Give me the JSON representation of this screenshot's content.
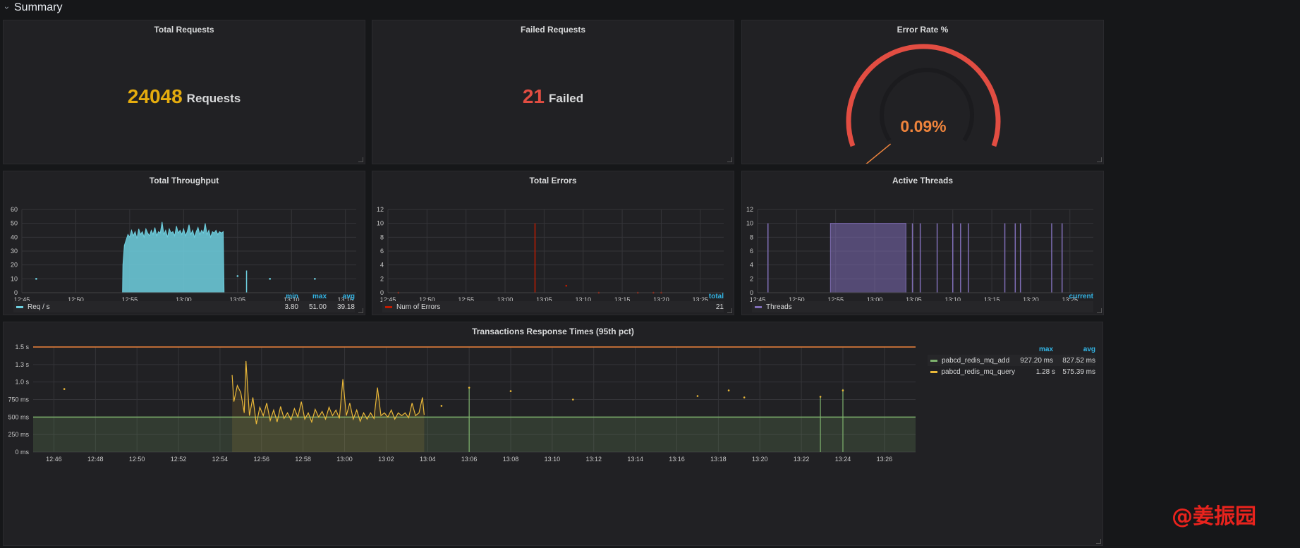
{
  "row": {
    "title": "Summary"
  },
  "total_requests": {
    "title": "Total Requests",
    "value": "24048",
    "unit": "Requests",
    "color": "#e5ac0e"
  },
  "failed_requests": {
    "title": "Failed Requests",
    "value": "21",
    "unit": "Failed",
    "color": "#e24d42"
  },
  "error_rate": {
    "title": "Error Rate %",
    "value": "0.09%",
    "fraction": 0.0009,
    "color": "#ef843c"
  },
  "throughput": {
    "title": "Total Throughput",
    "legend": {
      "headers": [
        "min",
        "max",
        "avg"
      ],
      "series_label": "Req / s",
      "min": "3.80",
      "max": "51.00",
      "avg": "39.18"
    },
    "color": "#6ed0e0"
  },
  "total_errors": {
    "title": "Total Errors",
    "legend": {
      "header": "total",
      "series_label": "Num of Errors",
      "total": "21"
    },
    "color": "#bf1b00"
  },
  "active_threads": {
    "title": "Active Threads",
    "legend": {
      "header": "current",
      "series_label": "Threads",
      "current": ""
    },
    "color": "#806eb7"
  },
  "response_times": {
    "title": "Transactions Response Times (95th pct)",
    "legend": {
      "headers": [
        "max",
        "avg"
      ],
      "rows": [
        {
          "label": "pabcd_redis_mq_add",
          "max": "927.20 ms",
          "avg": "827.52 ms",
          "color": "#7eb26d"
        },
        {
          "label": "pabcd_redis_mq_query",
          "max": "1.28 s",
          "avg": "575.39 ms",
          "color": "#eab839"
        }
      ]
    }
  },
  "watermark": "@姜振园",
  "chart_data": [
    {
      "type": "area",
      "title": "Total Throughput",
      "series_name": "Req / s",
      "x_ticks": [
        "12:45",
        "12:50",
        "12:55",
        "13:00",
        "13:05",
        "13:10",
        "13:15"
      ],
      "y_ticks": [
        0,
        10,
        20,
        30,
        40,
        50,
        60
      ],
      "xlim": [
        "12:45",
        "13:16"
      ],
      "ylim": [
        0,
        60
      ],
      "points": [
        [
          "12:54:20",
          0
        ],
        [
          "12:54:22",
          20
        ],
        [
          "12:54:30",
          34
        ],
        [
          "12:54:40",
          38
        ],
        [
          "12:54:50",
          42
        ],
        [
          "12:55:00",
          40
        ],
        [
          "12:55:10",
          45
        ],
        [
          "12:55:20",
          41
        ],
        [
          "12:55:30",
          44
        ],
        [
          "12:55:40",
          39
        ],
        [
          "12:55:50",
          46
        ],
        [
          "12:56:00",
          42
        ],
        [
          "12:56:10",
          44
        ],
        [
          "12:56:20",
          40
        ],
        [
          "12:56:30",
          46
        ],
        [
          "12:56:40",
          43
        ],
        [
          "12:56:50",
          41
        ],
        [
          "12:57:00",
          45
        ],
        [
          "12:57:10",
          42
        ],
        [
          "12:57:20",
          47
        ],
        [
          "12:57:30",
          41
        ],
        [
          "12:57:40",
          44
        ],
        [
          "12:57:50",
          43
        ],
        [
          "12:58:00",
          51
        ],
        [
          "12:58:10",
          42
        ],
        [
          "12:58:20",
          45
        ],
        [
          "12:58:30",
          40
        ],
        [
          "12:58:40",
          46
        ],
        [
          "12:58:50",
          43
        ],
        [
          "12:59:00",
          44
        ],
        [
          "12:59:10",
          41
        ],
        [
          "12:59:20",
          48
        ],
        [
          "12:59:30",
          43
        ],
        [
          "12:59:40",
          45
        ],
        [
          "12:59:50",
          42
        ],
        [
          "13:00:00",
          46
        ],
        [
          "13:00:10",
          41
        ],
        [
          "13:00:20",
          44
        ],
        [
          "13:00:30",
          49
        ],
        [
          "13:00:40",
          42
        ],
        [
          "13:00:50",
          45
        ],
        [
          "13:01:00",
          40
        ],
        [
          "13:01:10",
          44
        ],
        [
          "13:01:20",
          47
        ],
        [
          "13:01:30",
          42
        ],
        [
          "13:01:40",
          45
        ],
        [
          "13:01:50",
          43
        ],
        [
          "13:02:00",
          50
        ],
        [
          "13:02:10",
          42
        ],
        [
          "13:02:20",
          45
        ],
        [
          "13:02:30",
          40
        ],
        [
          "13:02:40",
          44
        ],
        [
          "13:02:50",
          43
        ],
        [
          "13:03:00",
          45
        ],
        [
          "13:03:10",
          42
        ],
        [
          "13:03:20",
          44
        ],
        [
          "13:03:30",
          43
        ],
        [
          "13:03:40",
          44
        ],
        [
          "13:03:45",
          0
        ]
      ],
      "spikes": [
        [
          "13:05:50",
          16
        ]
      ],
      "dots": [
        [
          "12:46:20",
          10
        ],
        [
          "13:05:00",
          12
        ],
        [
          "13:08:00",
          10
        ],
        [
          "13:12:10",
          10
        ]
      ]
    },
    {
      "type": "line",
      "title": "Total Errors",
      "series_name": "Num of Errors",
      "x_ticks": [
        "12:45",
        "12:50",
        "12:55",
        "13:00",
        "13:05",
        "13:10",
        "13:15",
        "13:20",
        "13:25"
      ],
      "y_ticks": [
        0,
        2,
        4,
        6,
        8,
        10,
        12
      ],
      "xlim": [
        "12:45",
        "13:28"
      ],
      "ylim": [
        0,
        12
      ],
      "spikes": [
        [
          "13:03:50",
          10
        ]
      ],
      "dots": [
        [
          "12:46:20",
          0
        ],
        [
          "13:07:50",
          1
        ],
        [
          "13:12:00",
          0
        ],
        [
          "13:17:00",
          0
        ],
        [
          "13:19:00",
          0
        ],
        [
          "13:20:00",
          0
        ]
      ]
    },
    {
      "type": "area",
      "title": "Active Threads",
      "series_name": "Threads",
      "x_ticks": [
        "12:45",
        "12:50",
        "12:55",
        "13:00",
        "13:05",
        "13:10",
        "13:15",
        "13:20",
        "13:25"
      ],
      "y_ticks": [
        0,
        2,
        4,
        6,
        8,
        10,
        12
      ],
      "xlim": [
        "12:45",
        "13:28"
      ],
      "ylim": [
        0,
        12
      ],
      "blocks": [
        [
          "12:54:20",
          "13:04:00",
          10
        ]
      ],
      "spikes": [
        [
          "12:46:20",
          10
        ],
        [
          "13:04:50",
          10
        ],
        [
          "13:05:50",
          10
        ],
        [
          "13:08:00",
          10
        ],
        [
          "13:10:00",
          10
        ],
        [
          "13:11:00",
          10
        ],
        [
          "13:12:00",
          10
        ],
        [
          "13:16:40",
          10
        ],
        [
          "13:18:00",
          10
        ],
        [
          "13:18:40",
          10
        ],
        [
          "13:22:40",
          10
        ],
        [
          "13:24:00",
          10
        ]
      ]
    },
    {
      "type": "line",
      "title": "Transactions Response Times (95th pct)",
      "x_ticks": [
        "12:46",
        "12:48",
        "12:50",
        "12:52",
        "12:54",
        "12:56",
        "12:58",
        "13:00",
        "13:02",
        "13:04",
        "13:06",
        "13:08",
        "13:10",
        "13:12",
        "13:14",
        "13:16",
        "13:18",
        "13:20",
        "13:22",
        "13:24",
        "13:26"
      ],
      "y_ticks": [
        "0 ms",
        "250 ms",
        "500 ms",
        "750 ms",
        "1.0 s",
        "1.3 s",
        "1.5 s"
      ],
      "ylim_ms": [
        0,
        1500
      ],
      "thresholds": [
        {
          "value_ms": 1500,
          "color": "#ef843c"
        },
        {
          "value_ms": 500,
          "color": "#7eb26d",
          "fill": "below"
        }
      ],
      "series": [
        {
          "name": "pabcd_redis_mq_query",
          "color": "#eab839",
          "points": [
            [
              "12:54:35",
              1100
            ],
            [
              "12:54:40",
              720
            ],
            [
              "12:54:50",
              950
            ],
            [
              "12:55:00",
              850
            ],
            [
              "12:55:10",
              560
            ],
            [
              "12:55:15",
              1300
            ],
            [
              "12:55:25",
              520
            ],
            [
              "12:55:35",
              780
            ],
            [
              "12:55:45",
              400
            ],
            [
              "12:55:55",
              640
            ],
            [
              "12:56:05",
              520
            ],
            [
              "12:56:15",
              700
            ],
            [
              "12:56:25",
              450
            ],
            [
              "12:56:35",
              600
            ],
            [
              "12:56:45",
              430
            ],
            [
              "12:56:55",
              650
            ],
            [
              "12:57:05",
              480
            ],
            [
              "12:57:15",
              560
            ],
            [
              "12:57:25",
              460
            ],
            [
              "12:57:35",
              620
            ],
            [
              "12:57:45",
              500
            ],
            [
              "12:57:55",
              720
            ],
            [
              "12:58:05",
              470
            ],
            [
              "12:58:15",
              560
            ],
            [
              "12:58:25",
              430
            ],
            [
              "12:58:35",
              610
            ],
            [
              "12:58:45",
              500
            ],
            [
              "12:58:55",
              580
            ],
            [
              "12:59:05",
              470
            ],
            [
              "12:59:15",
              640
            ],
            [
              "12:59:25",
              520
            ],
            [
              "12:59:35",
              600
            ],
            [
              "12:59:45",
              480
            ],
            [
              "12:59:55",
              1040
            ],
            [
              "13:00:05",
              520
            ],
            [
              "13:00:15",
              700
            ],
            [
              "13:00:25",
              470
            ],
            [
              "13:00:35",
              600
            ],
            [
              "13:00:45",
              440
            ],
            [
              "13:00:55",
              560
            ],
            [
              "13:01:05",
              470
            ],
            [
              "13:01:15",
              560
            ],
            [
              "13:01:25",
              480
            ],
            [
              "13:01:35",
              920
            ],
            [
              "13:01:45",
              520
            ],
            [
              "13:01:55",
              560
            ],
            [
              "13:02:05",
              500
            ],
            [
              "13:02:15",
              600
            ],
            [
              "13:02:25",
              470
            ],
            [
              "13:02:35",
              560
            ],
            [
              "13:02:45",
              520
            ],
            [
              "13:02:55",
              560
            ],
            [
              "13:03:05",
              490
            ],
            [
              "13:03:15",
              700
            ],
            [
              "13:03:25",
              520
            ],
            [
              "13:03:35",
              560
            ],
            [
              "13:03:45",
              780
            ],
            [
              "13:03:50",
              530
            ]
          ]
        },
        {
          "name": "pabcd_redis_mq_add",
          "color": "#7eb26d",
          "points": []
        }
      ],
      "dots": [
        [
          "12:46:30",
          900
        ],
        [
          "13:04:40",
          660
        ],
        [
          "13:06:00",
          920
        ],
        [
          "13:08:00",
          870
        ],
        [
          "13:11:00",
          750
        ],
        [
          "13:17:00",
          800
        ],
        [
          "13:18:30",
          880
        ],
        [
          "13:19:15",
          780
        ],
        [
          "13:22:55",
          790
        ],
        [
          "13:24:00",
          880
        ]
      ],
      "spikes": [
        [
          "13:06:00",
          920
        ],
        [
          "13:22:55",
          790
        ],
        [
          "13:24:00",
          900
        ]
      ]
    }
  ]
}
